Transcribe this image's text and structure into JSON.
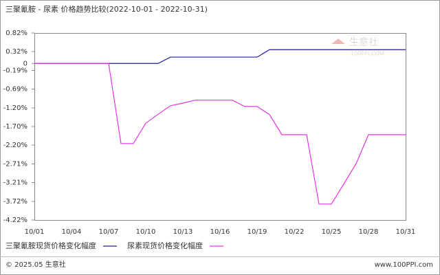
{
  "chart_data": {
    "type": "line",
    "title": "三聚氰胺 - 尿素  价格趋势比较(2022-10-01 - 2022-10-31)",
    "categories": [
      "10/01",
      null,
      null,
      "10/04",
      null,
      null,
      "10/07",
      null,
      null,
      "10/10",
      null,
      null,
      "10/13",
      null,
      null,
      "10/16",
      null,
      null,
      "10/19",
      null,
      null,
      "10/22",
      null,
      null,
      "10/25",
      null,
      null,
      "10/28",
      null,
      null,
      "10/31"
    ],
    "series": [
      {
        "name": "三聚氰胺现货价格变化幅度",
        "color": "#1c1c9c",
        "values": [
          0,
          0,
          0,
          0,
          0,
          0,
          0,
          0,
          0,
          0,
          0,
          0.17,
          0.17,
          0.17,
          0.17,
          0.17,
          0.17,
          0.17,
          0.17,
          0.37,
          0.37,
          0.37,
          0.37,
          0.37,
          0.37,
          0.37,
          0.37,
          0.37,
          0.37,
          0.37,
          0.37
        ]
      },
      {
        "name": "尿素现货价格变化幅度",
        "color": "#e830e8",
        "values": [
          0,
          0,
          0,
          0,
          0,
          0,
          0,
          -2.16,
          -2.16,
          -1.61,
          -1.37,
          -1.14,
          -1.07,
          -0.99,
          -0.99,
          -0.99,
          -0.99,
          -1.16,
          -1.16,
          -1.38,
          -1.92,
          -1.92,
          -1.92,
          -3.79,
          -3.79,
          -3.25,
          -2.7,
          -1.92,
          -1.92,
          -1.92,
          -1.92
        ]
      }
    ],
    "ylim": [
      -4.22,
      0.82
    ],
    "yticks": [
      {
        "value": 0.82,
        "label": "0.82%"
      },
      {
        "value": 0.32,
        "label": "0.32%"
      },
      0,
      {
        "value": -0.19,
        "label": "-0.19%"
      },
      {
        "value": -0.69,
        "label": "-0.69%"
      },
      {
        "value": -1.2,
        "label": "-1.20%"
      },
      {
        "value": -1.7,
        "label": "-1.70%"
      },
      {
        "value": -2.2,
        "label": "-2.20%"
      },
      {
        "value": -2.71,
        "label": "-2.71%"
      },
      {
        "value": -3.21,
        "label": "-3.21%"
      },
      {
        "value": -3.72,
        "label": "-3.72%"
      },
      {
        "value": -4.22,
        "label": "-4.22%"
      }
    ],
    "grid": false,
    "watermark": "生意社",
    "watermark_sub": "100PPI.COM",
    "footer_left": "© 2025.05 生意社",
    "footer_right": "www.100PPI.com"
  }
}
